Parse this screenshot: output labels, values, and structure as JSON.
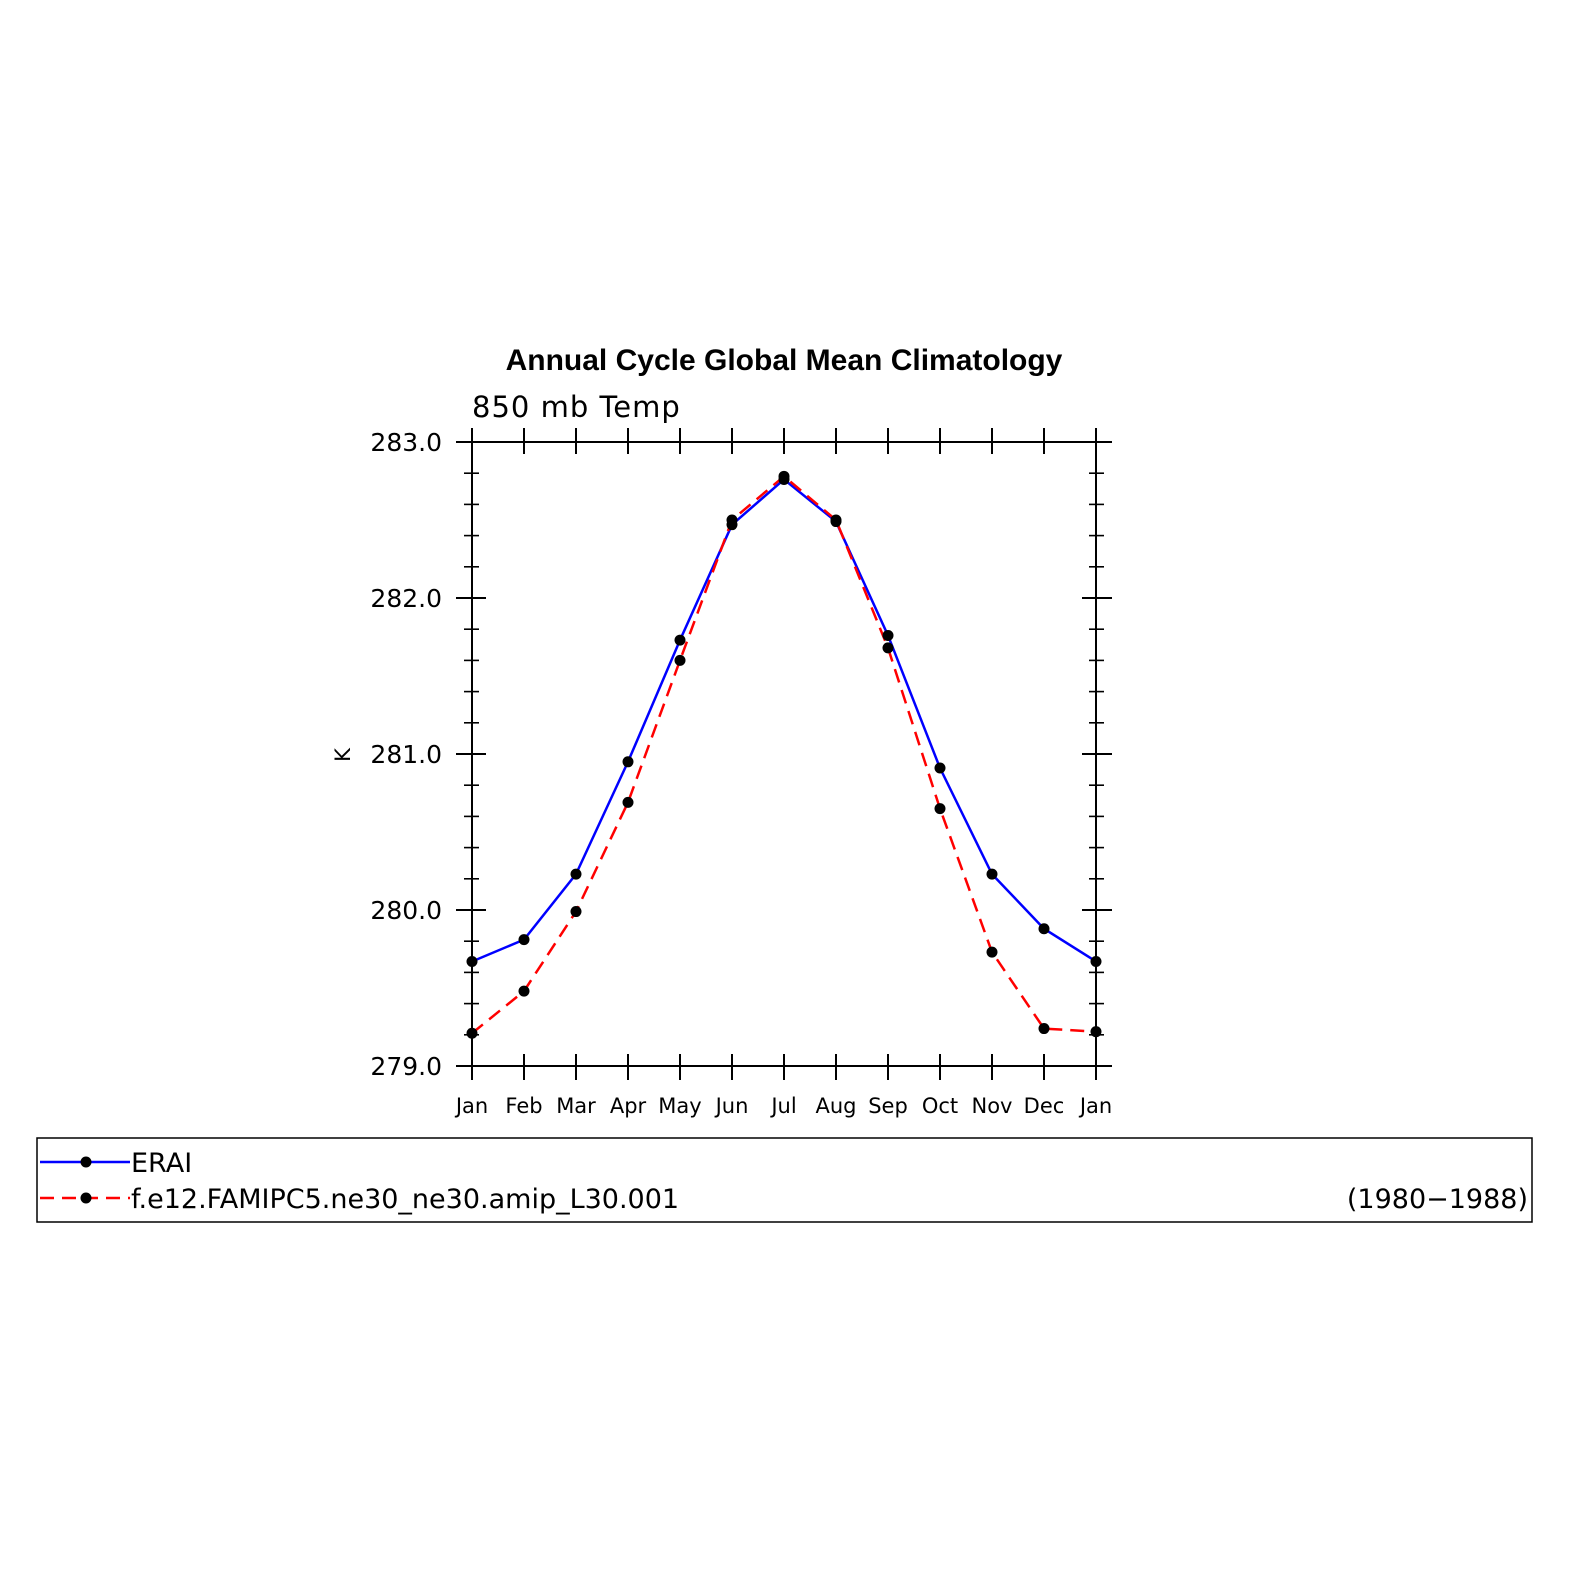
{
  "chart_data": {
    "type": "line",
    "title": "Annual Cycle Global Mean Climatology",
    "subtitle": "850 mb Temp",
    "ylabel": "K",
    "xlabel": "",
    "categories": [
      "Jan",
      "Feb",
      "Mar",
      "Apr",
      "May",
      "Jun",
      "Jul",
      "Aug",
      "Sep",
      "Oct",
      "Nov",
      "Dec",
      "Jan"
    ],
    "ylim": [
      279.0,
      283.0
    ],
    "yticks": [
      "279.0",
      "280.0",
      "281.0",
      "282.0",
      "283.0"
    ],
    "grid": false,
    "legend_placement": "bottom",
    "legend_period": "(1980−1988)",
    "series": [
      {
        "name": "ERAI",
        "color": "#0000ff",
        "dash": "solid",
        "marker": "filled-circle",
        "values": [
          279.67,
          279.81,
          280.23,
          280.95,
          281.73,
          282.47,
          282.76,
          282.49,
          281.76,
          280.91,
          280.23,
          279.88,
          279.67
        ]
      },
      {
        "name": "f.e12.FAMIPC5.ne30_ne30.amip_L30.001",
        "color": "#ff0000",
        "dash": "dashed",
        "marker": "filled-circle",
        "values": [
          279.21,
          279.48,
          279.99,
          280.69,
          281.6,
          282.5,
          282.78,
          282.5,
          281.68,
          280.65,
          279.73,
          279.24,
          279.22
        ]
      }
    ]
  }
}
